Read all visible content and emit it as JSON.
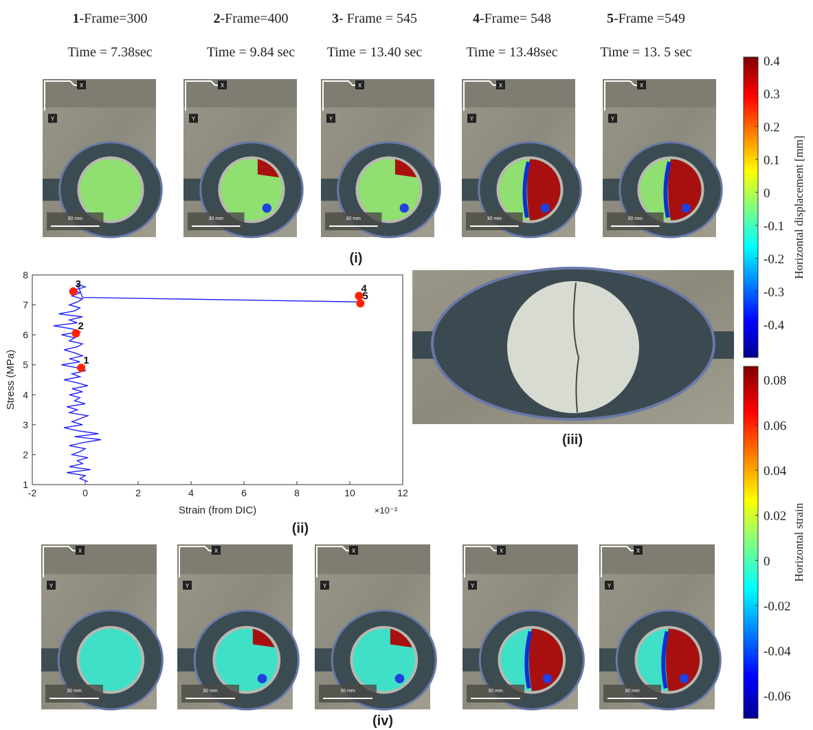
{
  "frames": [
    {
      "num": "1",
      "text": "-Frame=300",
      "time": "Time = 7.38sec"
    },
    {
      "num": "2",
      "text": "-Frame=400",
      "time": "Time = 9.84 sec"
    },
    {
      "num": "3",
      "text": "- Frame = 545",
      "time": "Time = 13.40 sec"
    },
    {
      "num": "4",
      "text": "-Frame= 548",
      "time": "Time = 13.48sec"
    },
    {
      "num": "5",
      "text": "-Frame =549",
      "time": "Time = 13. 5 sec"
    }
  ],
  "photo_labels": {
    "x": "X",
    "y": "Y",
    "scale": "30 mm"
  },
  "panel_labels": {
    "i": "(i)",
    "ii": "(ii)",
    "iii": "(iii)",
    "iv": "(iv)"
  },
  "colorbars": [
    {
      "label": "Horizontal displacement [mm]",
      "lim": [
        -0.5,
        0.41
      ],
      "ticks": [
        0.4,
        0.3,
        0.2,
        0.1,
        0,
        -0.1,
        -0.2,
        -0.3,
        -0.4
      ]
    },
    {
      "label": "Horizontal strain",
      "lim": [
        -0.07,
        0.086
      ],
      "ticks": [
        0.08,
        0.06,
        0.04,
        0.02,
        0,
        -0.02,
        -0.04,
        -0.06
      ]
    }
  ],
  "chart_data": {
    "type": "line",
    "xlabel": "Strain (from DIC)",
    "ylabel": "Stress (MPa)",
    "x_multiplier": "×10⁻³",
    "xlim": [
      -2,
      12
    ],
    "xticks": [
      -2,
      0,
      2,
      4,
      6,
      8,
      10,
      12
    ],
    "ylim": [
      1,
      8
    ],
    "yticks": [
      1,
      2,
      3,
      4,
      5,
      6,
      7,
      8
    ],
    "x": [
      0.1,
      -0.2,
      0.0,
      -0.7,
      0.2,
      -0.6,
      -0.1,
      -0.3,
      0.1,
      -0.5,
      -0.2,
      0.0,
      -0.6,
      -0.1,
      0.6,
      -0.4,
      0.5,
      -0.3,
      -0.8,
      -0.1,
      -0.5,
      -0.2,
      0.1,
      -0.6,
      -0.3,
      -0.7,
      0.0,
      -0.4,
      -0.2,
      -0.6,
      -0.1,
      -0.5,
      0.1,
      -0.3,
      -0.8,
      -0.2,
      -0.5,
      0.0,
      -0.3,
      -0.9,
      -0.2,
      -0.6,
      -0.1,
      -0.4,
      -0.8,
      -0.3,
      -0.1,
      -0.6,
      -0.4,
      -0.9,
      -0.2,
      -0.5,
      -1.2,
      -0.3,
      -0.6,
      -0.1,
      -1.0,
      -0.4,
      -0.2,
      -0.6,
      -0.3,
      -0.1,
      -0.5,
      -0.2,
      -0.4,
      0.0,
      -0.3,
      -0.1,
      10.3
    ],
    "series": [
      {
        "color": "#1f1fff",
        "values": [
          1.1,
          1.2,
          1.3,
          1.4,
          1.5,
          1.6,
          1.7,
          1.8,
          1.9,
          2.0,
          2.1,
          2.2,
          2.3,
          2.4,
          2.5,
          2.6,
          2.7,
          2.8,
          2.9,
          3.0,
          3.1,
          3.2,
          3.3,
          3.4,
          3.5,
          3.6,
          3.7,
          3.8,
          3.9,
          4.0,
          4.1,
          4.2,
          4.3,
          4.4,
          4.5,
          4.6,
          4.7,
          4.8,
          4.9,
          5.0,
          5.1,
          5.2,
          5.3,
          5.4,
          5.5,
          5.6,
          5.7,
          5.8,
          5.9,
          6.0,
          6.1,
          6.2,
          6.3,
          6.4,
          6.5,
          6.6,
          6.7,
          6.8,
          6.9,
          7.0,
          7.1,
          7.2,
          7.3,
          7.4,
          7.5,
          7.6,
          7.7,
          7.25,
          7.1
        ]
      }
    ],
    "points": {
      "color": "#ff2200",
      "labels": [
        "1",
        "2",
        "3",
        "4",
        "5"
      ],
      "x": [
        -0.15,
        -0.35,
        -0.45,
        10.35,
        10.4
      ],
      "values": [
        4.9,
        6.05,
        7.45,
        7.3,
        7.05
      ]
    }
  }
}
